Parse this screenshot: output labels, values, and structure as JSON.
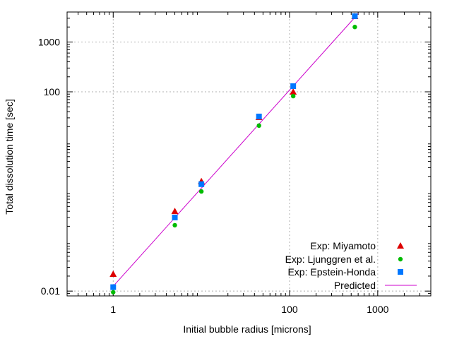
{
  "chart_data": {
    "type": "scatter",
    "title": "",
    "xlabel": "Initial bubble radius [microns]",
    "ylabel": "Total dissolution time [sec]",
    "xscale": "log",
    "yscale": "log",
    "xlim": [
      0.3,
      4000
    ],
    "ylim": [
      0.008,
      4000
    ],
    "grid": true,
    "legend_position": "bottom-right",
    "x_ticks": [
      {
        "value": 1,
        "label": "1"
      },
      {
        "value": 100,
        "label": "100"
      },
      {
        "value": 1000,
        "label": "1000"
      }
    ],
    "y_ticks": [
      {
        "value": 0.01,
        "label": "0.01"
      },
      {
        "value": 100,
        "label": "100"
      },
      {
        "value": 1000,
        "label": "1000"
      }
    ],
    "series": [
      {
        "name": "Exp: Miyamoto",
        "color": "#dd0000",
        "marker": "triangle",
        "x": [
          1,
          5,
          10,
          45,
          110,
          550
        ],
        "y": [
          0.022,
          0.4,
          1.6,
          31,
          100,
          3300
        ]
      },
      {
        "name": "Exp: Ljunggren et al.",
        "color": "#00bb00",
        "marker": "circle",
        "x": [
          1,
          5,
          10,
          45,
          110,
          550
        ],
        "y": [
          0.0095,
          0.21,
          1.0,
          21,
          82,
          2000
        ]
      },
      {
        "name": "Exp: Epstein-Honda",
        "color": "#0077ff",
        "marker": "square",
        "x": [
          1,
          5,
          10,
          45,
          110,
          550
        ],
        "y": [
          0.012,
          0.3,
          1.4,
          32,
          130,
          3300
        ]
      },
      {
        "name": "Predicted",
        "color": "#cc00cc",
        "marker": "line",
        "x": [
          1,
          600
        ],
        "y": [
          0.0125,
          3700
        ]
      }
    ]
  }
}
